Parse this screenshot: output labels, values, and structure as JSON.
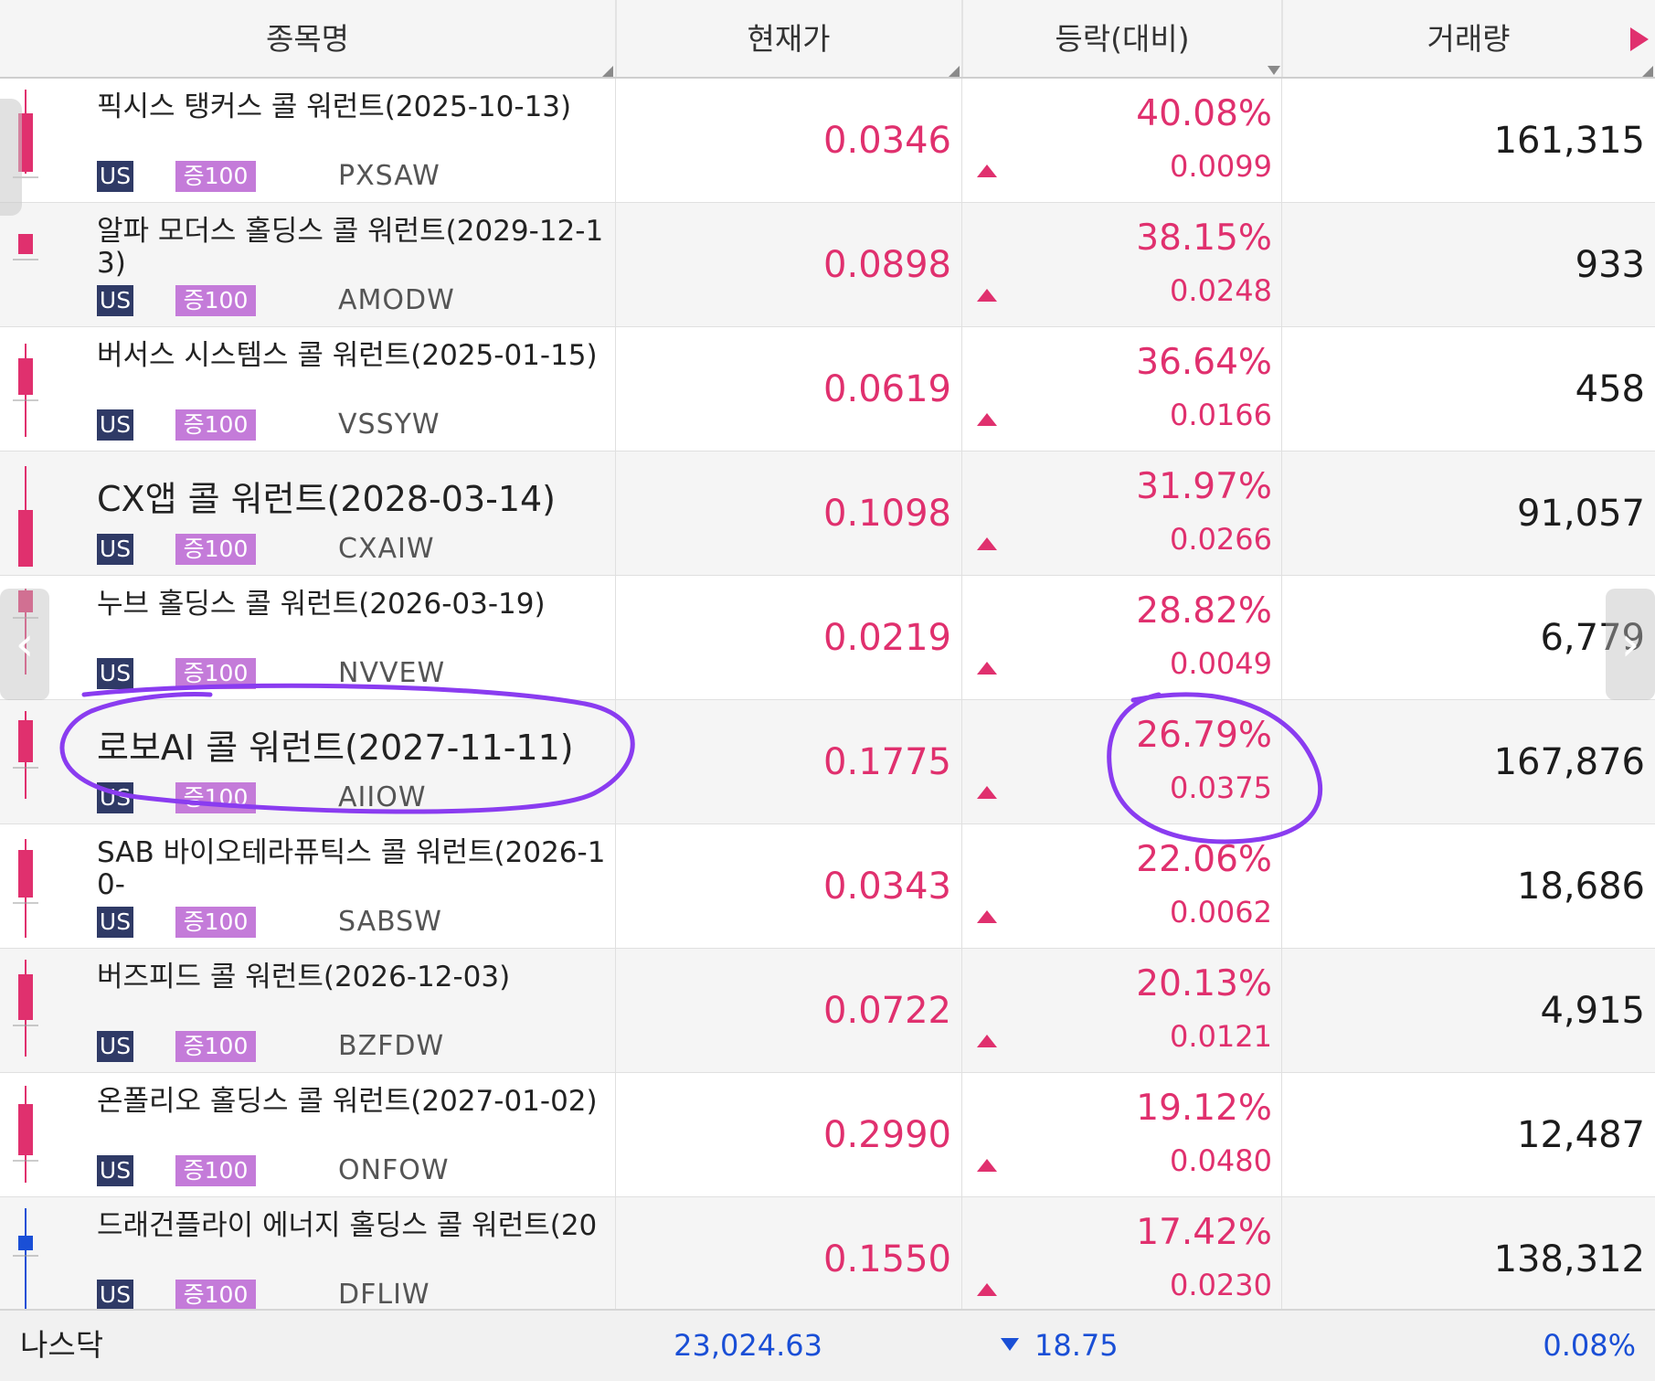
{
  "header": {
    "name": "종목명",
    "price": "현재가",
    "change": "등락(대비)",
    "volume": "거래량"
  },
  "colors": {
    "up": "#e0306e",
    "down": "#1a4fd6",
    "tag_us": "#2f3a66",
    "tag_margin": "#c47bd9",
    "annotation": "#8a3cf0"
  },
  "rows": [
    {
      "name": "픽시스 탱커스 콜 워런트(2025-10-13)",
      "tag_us": "US",
      "tag_margin": "증100",
      "code": "PXSAW",
      "price": "0.0346",
      "pct": "40.08%",
      "chg": "0.0099",
      "volume": "161,315",
      "candle": "up"
    },
    {
      "name": "알파 모더스 홀딩스 콜 워런트(2029-12-13)",
      "tag_us": "US",
      "tag_margin": "증100",
      "code": "AMODW",
      "price": "0.0898",
      "pct": "38.15%",
      "chg": "0.0248",
      "volume": "933",
      "candle": "up"
    },
    {
      "name": "버서스 시스템스 콜 워런트(2025-01-15)",
      "tag_us": "US",
      "tag_margin": "증100",
      "code": "VSSYW",
      "price": "0.0619",
      "pct": "36.64%",
      "chg": "0.0166",
      "volume": "458",
      "candle": "up"
    },
    {
      "name": "CX앱 콜 워런트(2028-03-14)",
      "tag_us": "US",
      "tag_margin": "증100",
      "code": "CXAIW",
      "price": "0.1098",
      "pct": "31.97%",
      "chg": "0.0266",
      "volume": "91,057",
      "candle": "up"
    },
    {
      "name": "누브 홀딩스 콜 워런트(2026-03-19)",
      "tag_us": "US",
      "tag_margin": "증100",
      "code": "NVVEW",
      "price": "0.0219",
      "pct": "28.82%",
      "chg": "0.0049",
      "volume": "6,779",
      "candle": "up"
    },
    {
      "name": "로보AI 콜 워런트(2027-11-11)",
      "tag_us": "US",
      "tag_margin": "증100",
      "code": "AIIOW",
      "price": "0.1775",
      "pct": "26.79%",
      "chg": "0.0375",
      "volume": "167,876",
      "candle": "up"
    },
    {
      "name": "SAB 바이오테라퓨틱스 콜 워런트(2026-10-",
      "tag_us": "US",
      "tag_margin": "증100",
      "code": "SABSW",
      "price": "0.0343",
      "pct": "22.06%",
      "chg": "0.0062",
      "volume": "18,686",
      "candle": "up"
    },
    {
      "name": "버즈피드 콜 워런트(2026-12-03)",
      "tag_us": "US",
      "tag_margin": "증100",
      "code": "BZFDW",
      "price": "0.0722",
      "pct": "20.13%",
      "chg": "0.0121",
      "volume": "4,915",
      "candle": "up"
    },
    {
      "name": "온폴리오 홀딩스 콜 워런트(2027-01-02)",
      "tag_us": "US",
      "tag_margin": "증100",
      "code": "ONFOW",
      "price": "0.2990",
      "pct": "19.12%",
      "chg": "0.0480",
      "volume": "12,487",
      "candle": "up"
    },
    {
      "name": "드래건플라이 에너지 홀딩스 콜 워런트(20",
      "tag_us": "US",
      "tag_margin": "증100",
      "code": "DFLIW",
      "price": "0.1550",
      "pct": "17.42%",
      "chg": "0.0230",
      "volume": "138,312",
      "candle": "down"
    }
  ],
  "footer": {
    "index_name": "나스닥",
    "index_value": "23,024.63",
    "index_change": "18.75",
    "index_pct": "0.08%"
  },
  "icons": {
    "prev": "chevron-left-icon",
    "next": "chevron-right-icon",
    "more": "play-right-icon"
  }
}
